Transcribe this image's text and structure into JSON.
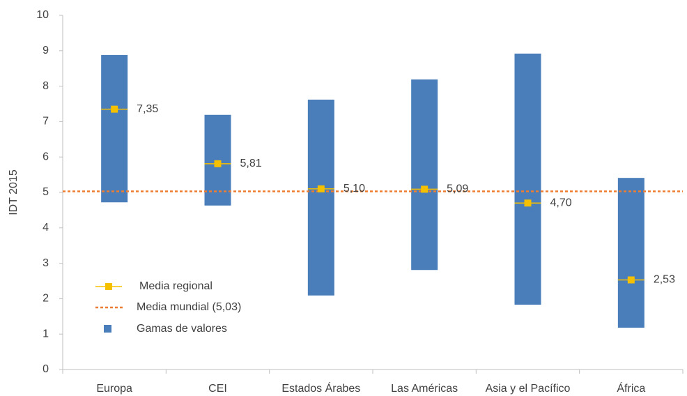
{
  "chart_data": {
    "type": "range",
    "y_label": "IDT 2015",
    "categories": [
      "Europa",
      "CEI",
      "Estados Árabes",
      "Las Américas",
      "Asia y el Pacífico",
      "África"
    ],
    "ranges": {
      "name": "Gamas de valores",
      "color": "#4a7ebb",
      "low": [
        4.72,
        4.63,
        2.09,
        2.81,
        1.83,
        1.18
      ],
      "high": [
        8.88,
        7.19,
        7.62,
        8.19,
        8.92,
        5.41
      ]
    },
    "means": {
      "name": "Media regional",
      "color": "#f5c000",
      "values": [
        7.35,
        5.81,
        5.1,
        5.09,
        4.7,
        2.53
      ],
      "value_labels": [
        "7,35",
        "5,81",
        "5,10",
        "5,09",
        "4,70",
        "2,53"
      ]
    },
    "reference_line": {
      "name": "Media mundial (5,03)",
      "value": 5.03,
      "color": "#ed7d31"
    },
    "ylim": [
      0,
      10
    ],
    "yticks": [
      0,
      1,
      2,
      3,
      4,
      5,
      6,
      7,
      8,
      9,
      10
    ],
    "legend": "lower-left"
  }
}
